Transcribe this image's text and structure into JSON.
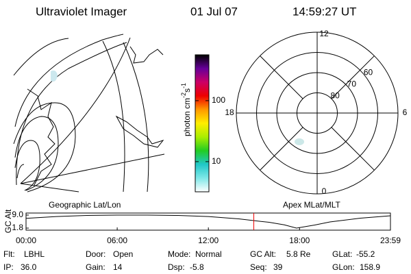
{
  "header": {
    "title": "Ultraviolet Imager",
    "date": "01 Jul 07",
    "time": "14:59:27 UT"
  },
  "colorbar": {
    "label": "photon cm",
    "exp1": "-2",
    "unit2": "s",
    "exp2": "-1",
    "scale": "log",
    "lim": [
      3.2,
      565
    ],
    "ticks": [
      10,
      100
    ],
    "colors": [
      "#ffffff",
      "#7fe8e8",
      "#20c8c8",
      "#22cc22",
      "#aaee00",
      "#ffee00",
      "#ff9900",
      "#ee0000",
      "#cc0066",
      "#660099",
      "#000000"
    ]
  },
  "polar": {
    "mlt_ticks": [
      0,
      6,
      12,
      18
    ],
    "lat_rings": [
      60,
      70,
      80
    ],
    "lat_lim": [
      90,
      50
    ]
  },
  "altitude": {
    "ylabel": "GC Alt",
    "left_label": "Geographic Lat/Lon",
    "right_label": "Apex MLat/MLT",
    "ylim": [
      1.8,
      9.0
    ],
    "yticks": [
      {
        "value": 9.0,
        "label": "9.0"
      },
      1.8
    ],
    "xlim": [
      0,
      23.983
    ],
    "xticks": [
      {
        "value": 0,
        "label": "00:00"
      },
      {
        "value": 6,
        "label": "06:00"
      },
      {
        "value": 12,
        "label": "12:00"
      },
      {
        "value": 18,
        "label": "18:00"
      },
      {
        "value": 23.983,
        "label": "23:59"
      }
    ],
    "x": [
      0,
      2,
      4,
      6,
      8,
      10,
      12,
      14,
      16,
      17,
      17.8,
      19,
      20,
      22,
      23.983
    ],
    "values": [
      7.2,
      8.2,
      8.8,
      9.0,
      9.0,
      8.8,
      8.2,
      6.9,
      5.0,
      3.6,
      1.8,
      3.5,
      5.2,
      7.3,
      8.6
    ],
    "color": "#000000",
    "marker_x": 14.99,
    "marker_color": "#ee0000"
  },
  "footer": [
    [
      {
        "label": "Flt:",
        "value": "LBHL"
      },
      {
        "label": "Door:",
        "value": "Open"
      },
      {
        "label": "Mode:",
        "value": "Normal"
      },
      {
        "label": "GC Alt:",
        "value": "5.8 Re"
      },
      {
        "label": "GLat:",
        "value": "-55.2"
      }
    ],
    [
      {
        "label": "IP:",
        "value": "36.0"
      },
      {
        "label": "Gain:",
        "value": "14"
      },
      {
        "label": "Dsp:",
        "value": "-5.8"
      },
      {
        "label": "Seq:",
        "value": "39"
      },
      {
        "label": "GLon:",
        "value": "158.9"
      }
    ]
  ]
}
